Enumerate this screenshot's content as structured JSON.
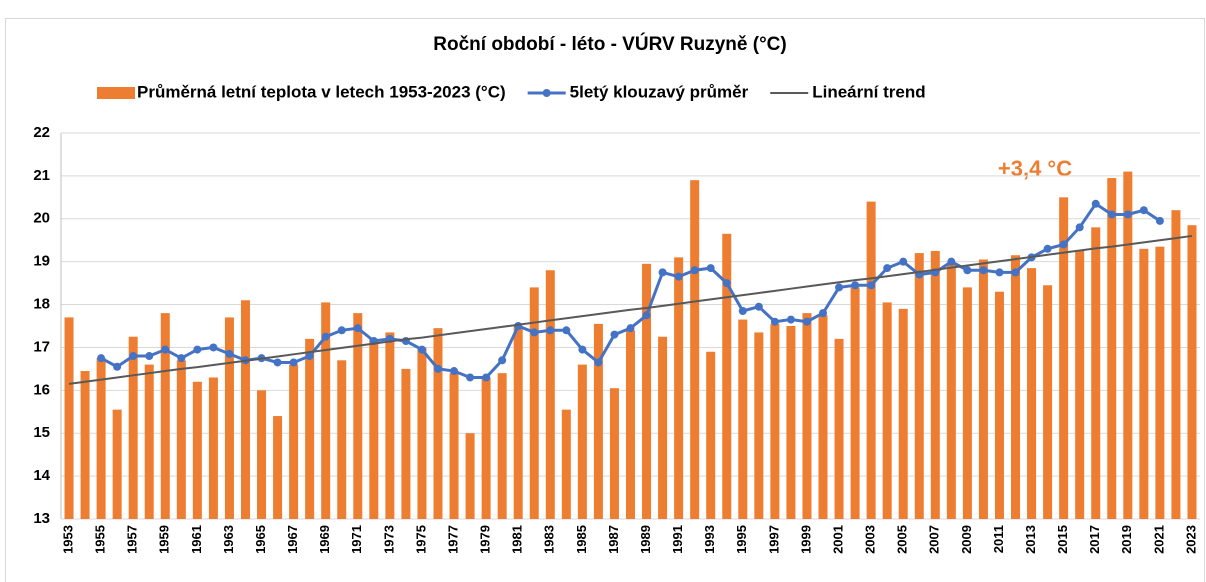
{
  "chart_data": {
    "type": "bar",
    "title": "Roční období - léto - VÚRV Ruzyně (°C)",
    "annotation": "+3,4 °C",
    "categories": [
      "1953",
      null,
      "1955",
      null,
      "1957",
      null,
      "1959",
      null,
      "1961",
      null,
      "1963",
      null,
      "1965",
      null,
      "1967",
      null,
      "1969",
      null,
      "1971",
      null,
      "1973",
      null,
      "1975",
      null,
      "1977",
      null,
      "1979",
      null,
      "1981",
      null,
      "1983",
      null,
      "1985",
      null,
      "1987",
      null,
      "1989",
      null,
      "1991",
      null,
      "1993",
      null,
      "1995",
      null,
      "1997",
      null,
      "1999",
      null,
      "2001",
      null,
      "2003",
      null,
      "2005",
      null,
      "2007",
      null,
      "2009",
      null,
      "2011",
      null,
      "2013",
      null,
      "2015",
      null,
      "2017",
      null,
      "2019",
      null,
      "2021",
      null,
      "2023"
    ],
    "series": [
      {
        "name": "Průměrná letní teplota v letech 1953-2023 (°C)",
        "type": "bar",
        "color": "#ed7d31",
        "values": [
          17.7,
          16.45,
          16.75,
          15.55,
          17.25,
          16.6,
          17.8,
          16.7,
          16.2,
          16.3,
          17.7,
          18.1,
          16.0,
          15.4,
          16.6,
          17.2,
          18.05,
          16.7,
          17.8,
          17.2,
          17.35,
          16.5,
          17.0,
          17.45,
          16.4,
          15.0,
          16.3,
          16.4,
          17.5,
          18.4,
          18.8,
          15.55,
          16.6,
          17.55,
          16.05,
          17.4,
          18.95,
          17.25,
          19.1,
          20.9,
          16.9,
          19.65,
          17.65,
          17.35,
          17.55,
          17.5,
          17.8,
          17.75,
          17.2,
          18.4,
          20.4,
          18.05,
          17.9,
          19.2,
          19.25,
          18.95,
          18.4,
          19.05,
          18.3,
          19.15,
          18.85,
          18.45,
          20.5,
          19.25,
          19.8,
          20.95,
          21.1,
          19.3,
          19.35,
          20.2,
          19.85
        ]
      },
      {
        "name": "5letý klouzavý průměr",
        "type": "line",
        "color": "#4472c4",
        "markers": true,
        "values": [
          null,
          null,
          16.75,
          16.55,
          16.8,
          16.8,
          16.95,
          16.75,
          16.95,
          17.0,
          16.85,
          16.7,
          16.75,
          16.65,
          16.65,
          16.8,
          17.25,
          17.4,
          17.45,
          17.15,
          17.2,
          17.15,
          16.95,
          16.5,
          16.45,
          16.3,
          16.3,
          16.7,
          17.5,
          17.35,
          17.4,
          17.4,
          16.95,
          16.65,
          17.3,
          17.45,
          17.75,
          18.75,
          18.65,
          18.8,
          18.85,
          18.5,
          17.85,
          17.95,
          17.6,
          17.65,
          17.6,
          17.8,
          18.4,
          18.45,
          18.45,
          18.85,
          19.0,
          18.7,
          18.75,
          19.0,
          18.8,
          18.8,
          18.75,
          18.75,
          19.1,
          19.3,
          19.4,
          19.8,
          20.35,
          20.1,
          20.1,
          20.2,
          19.95,
          null,
          null
        ]
      },
      {
        "name": "Lineární trend",
        "type": "line",
        "color": "#595959",
        "markers": false,
        "values": [
          16.15,
          16.2,
          16.25,
          16.3,
          16.35,
          16.4,
          16.45,
          16.5,
          16.54,
          16.59,
          16.64,
          16.69,
          16.74,
          16.79,
          16.84,
          16.89,
          16.94,
          16.99,
          17.04,
          17.09,
          17.14,
          17.19,
          17.23,
          17.28,
          17.33,
          17.38,
          17.43,
          17.48,
          17.53,
          17.58,
          17.63,
          17.68,
          17.73,
          17.78,
          17.83,
          17.88,
          17.92,
          17.97,
          18.02,
          18.07,
          18.12,
          18.17,
          18.22,
          18.27,
          18.32,
          18.37,
          18.42,
          18.47,
          18.52,
          18.57,
          18.61,
          18.66,
          18.71,
          18.76,
          18.81,
          18.86,
          18.91,
          18.96,
          19.01,
          19.06,
          19.11,
          19.16,
          19.21,
          19.26,
          19.31,
          19.35,
          19.4,
          19.45,
          19.5,
          19.55,
          19.6
        ]
      }
    ],
    "ylim": [
      13,
      22
    ],
    "yticks": [
      13,
      14,
      15,
      16,
      17,
      18,
      19,
      20,
      21,
      22
    ],
    "grid": true,
    "legend": "top"
  }
}
